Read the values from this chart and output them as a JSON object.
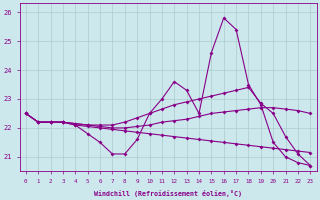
{
  "xlabel": "Windchill (Refroidissement éolien,°C)",
  "bg_color": "#cde8ed",
  "line_color": "#880088",
  "grid_color": "#aacccc",
  "ylim": [
    20.5,
    26.3
  ],
  "xlim": [
    -0.5,
    23.5
  ],
  "yticks": [
    21,
    22,
    23,
    24,
    25,
    26
  ],
  "xticks": [
    0,
    1,
    2,
    3,
    4,
    5,
    6,
    7,
    8,
    9,
    10,
    11,
    12,
    13,
    14,
    15,
    16,
    17,
    18,
    19,
    20,
    21,
    22,
    23
  ],
  "line1": [
    22.5,
    22.2,
    22.2,
    22.2,
    22.1,
    21.8,
    21.5,
    21.1,
    21.1,
    21.6,
    22.5,
    23.0,
    23.6,
    23.3,
    22.5,
    24.6,
    25.8,
    25.4,
    23.5,
    22.8,
    21.5,
    21.0,
    20.8,
    20.7
  ],
  "line2": [
    22.5,
    22.2,
    22.2,
    22.2,
    22.15,
    22.1,
    22.1,
    22.1,
    22.2,
    22.35,
    22.5,
    22.65,
    22.8,
    22.9,
    23.0,
    23.1,
    23.2,
    23.3,
    23.4,
    22.85,
    22.5,
    21.7,
    21.1,
    20.7
  ],
  "line3": [
    22.5,
    22.2,
    22.2,
    22.2,
    22.15,
    22.1,
    22.05,
    22.0,
    22.0,
    22.05,
    22.1,
    22.2,
    22.25,
    22.3,
    22.4,
    22.5,
    22.55,
    22.6,
    22.65,
    22.7,
    22.7,
    22.65,
    22.6,
    22.5
  ],
  "line4": [
    22.5,
    22.2,
    22.2,
    22.2,
    22.1,
    22.05,
    22.0,
    21.95,
    21.9,
    21.85,
    21.8,
    21.75,
    21.7,
    21.65,
    21.6,
    21.55,
    21.5,
    21.45,
    21.4,
    21.35,
    21.3,
    21.25,
    21.2,
    21.15
  ]
}
